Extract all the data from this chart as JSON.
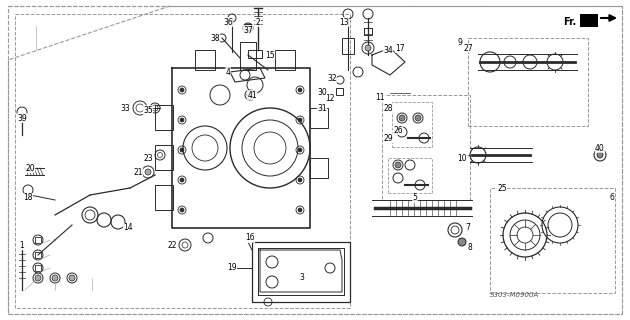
{
  "bg_color": "#ffffff",
  "fig_width": 6.3,
  "fig_height": 3.2,
  "dpi": 100,
  "diagram_code": "S303-M0900A",
  "line_color": "#2a2a2a",
  "gray": "#555555",
  "lgray": "#999999"
}
